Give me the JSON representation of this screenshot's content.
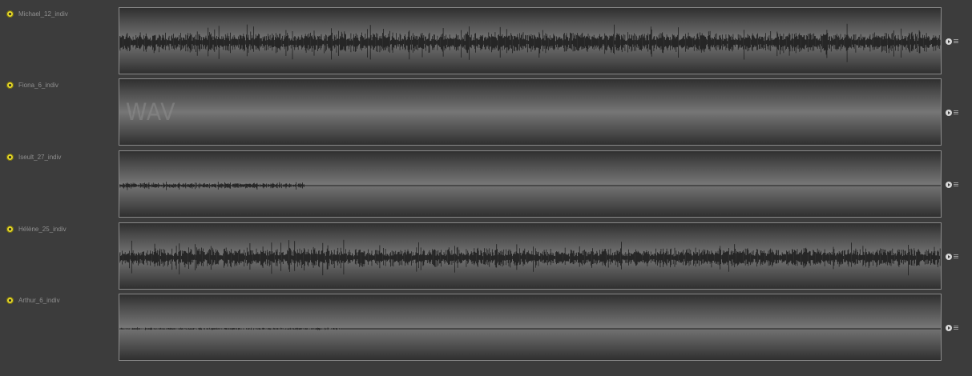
{
  "tracks": [
    {
      "name": "Michael_12_indiv",
      "display": "waveform",
      "waveform": {
        "start": 0.0,
        "end": 1.0,
        "amplitude": 0.45,
        "seed": 11
      }
    },
    {
      "name": "Fiona_6_indiv",
      "display": "placeholder",
      "placeholder_text": "WAV"
    },
    {
      "name": "Iseult_27_indiv",
      "display": "waveform",
      "waveform": {
        "start": 0.0,
        "end": 0.225,
        "amplitude": 0.12,
        "seed": 27
      }
    },
    {
      "name": "Hélène_25_indiv",
      "display": "waveform",
      "waveform": {
        "start": 0.0,
        "end": 1.0,
        "amplitude": 0.42,
        "seed": 25
      }
    },
    {
      "name": "Arthur_6_indiv",
      "display": "waveform",
      "waveform": {
        "start": 0.0,
        "end": 0.27,
        "amplitude": 0.04,
        "seed": 6
      }
    }
  ],
  "icons": {
    "track_toggle": "power-icon",
    "track_play": "play-icon",
    "track_menu": "menu-icon"
  },
  "colors": {
    "background": "#3c3c3c",
    "toggle": "#e3d52a",
    "waveform": "#1e1e1e",
    "label": "#8f8f8f"
  }
}
